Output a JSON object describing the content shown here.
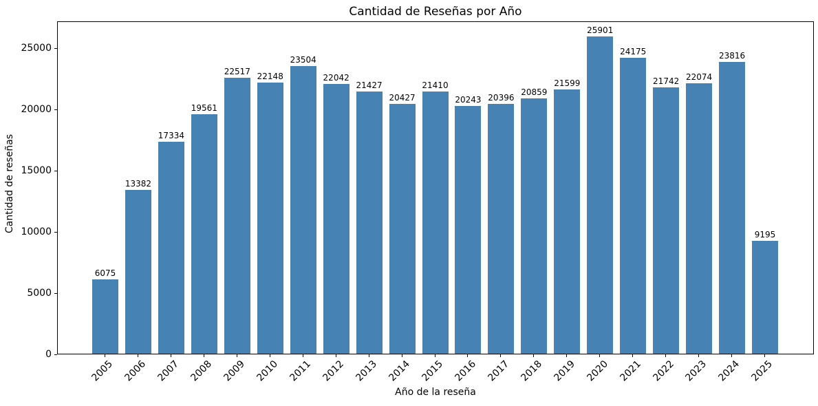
{
  "chart_data": {
    "type": "bar",
    "title": "Cantidad de Reseñas por Año",
    "xlabel": "Año de la reseña",
    "ylabel": "Cantidad de reseñas",
    "categories": [
      "2005",
      "2006",
      "2007",
      "2008",
      "2009",
      "2010",
      "2011",
      "2012",
      "2013",
      "2014",
      "2015",
      "2016",
      "2017",
      "2018",
      "2019",
      "2020",
      "2021",
      "2022",
      "2023",
      "2024",
      "2025"
    ],
    "values": [
      6075,
      13382,
      17334,
      19561,
      22517,
      22148,
      23504,
      22042,
      21427,
      20427,
      21410,
      20243,
      20396,
      20859,
      21599,
      25901,
      24175,
      21742,
      22074,
      23816,
      9195
    ],
    "bar_labels": [
      "6075",
      "13382",
      "17334",
      "19561",
      "22517",
      "22148",
      "23504",
      "22042",
      "21427",
      "20427",
      "21410",
      "20243",
      "20396",
      "20859",
      "21599",
      "25901",
      "24175",
      "21742",
      "22074",
      "23816",
      "9195"
    ],
    "yticks": [
      0,
      5000,
      10000,
      15000,
      20000,
      25000
    ],
    "ylim": [
      0,
      27200
    ],
    "grid": false,
    "legend_position": "none",
    "bar_color": "#4682B4",
    "text_color": "#000000",
    "spine_color": "#000000",
    "background_color": "#ffffff"
  }
}
